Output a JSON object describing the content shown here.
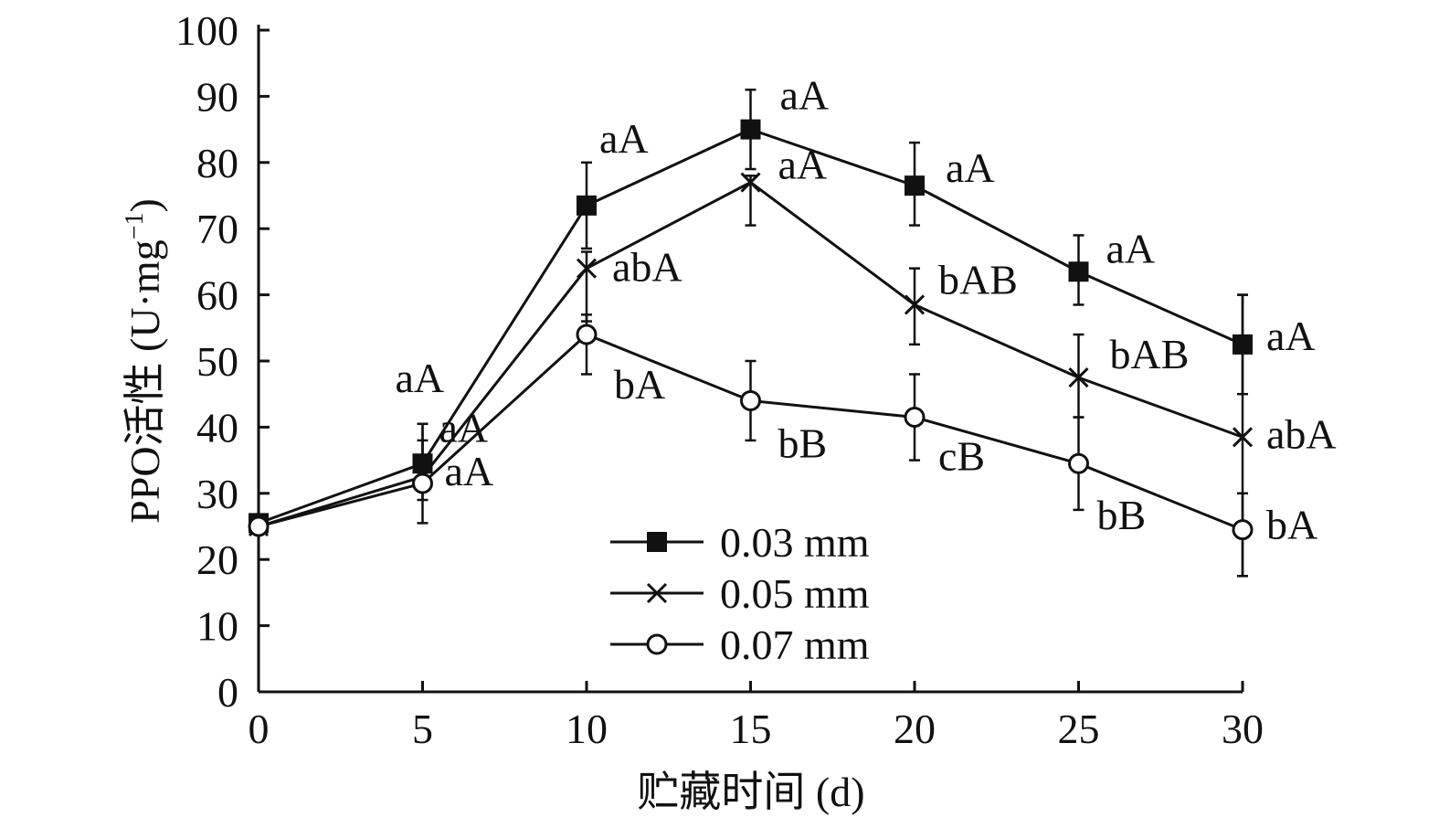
{
  "chart_data": {
    "type": "line",
    "xlabel": "贮藏时间 (d)",
    "ylabel": "PPO活性 (U·mg",
    "ylabel_sup": "−1",
    "ylabel_close": ")",
    "xlim": [
      0,
      30
    ],
    "ylim": [
      0,
      100
    ],
    "xticks": [
      0,
      5,
      10,
      15,
      20,
      25,
      30
    ],
    "yticks": [
      0,
      10,
      20,
      30,
      40,
      50,
      60,
      70,
      80,
      90,
      100
    ],
    "legend_position": "bottom-center",
    "grid": false,
    "series": [
      {
        "name": "0.03 mm",
        "marker": "filled-square",
        "color": "#111111",
        "x": [
          0,
          5,
          10,
          15,
          20,
          25,
          30
        ],
        "y": [
          25.5,
          34.5,
          73.5,
          85,
          76.5,
          63.5,
          52.5
        ],
        "err_low": [
          25.5,
          31,
          67,
          79,
          70.5,
          58.5,
          45
        ],
        "err_high": [
          25.5,
          40.5,
          80,
          91,
          83,
          69,
          60
        ],
        "labels": [
          "",
          "aA",
          "aA",
          "aA",
          "aA",
          "aA",
          "aA"
        ]
      },
      {
        "name": "0.05 mm",
        "marker": "cross",
        "color": "#111111",
        "x": [
          0,
          5,
          10,
          15,
          20,
          25,
          30
        ],
        "y": [
          25,
          32.5,
          64,
          77,
          58.5,
          47.5,
          38.5
        ],
        "err_low": [
          25,
          29,
          56,
          70.5,
          52.5,
          41.5,
          17.5
        ],
        "err_high": [
          25,
          38,
          66.5,
          78,
          64,
          54,
          60
        ],
        "labels": [
          "",
          "aA",
          "abA",
          "aA",
          "bAB",
          "bAB",
          "abA"
        ]
      },
      {
        "name": "0.07 mm",
        "marker": "open-circle",
        "color": "#111111",
        "x": [
          0,
          5,
          10,
          15,
          20,
          25,
          30
        ],
        "y": [
          25,
          31.5,
          54,
          44,
          41.5,
          34.5,
          24.5
        ],
        "err_low": [
          25,
          25.5,
          48,
          38,
          35,
          27.5,
          17.5
        ],
        "err_high": [
          25,
          40.5,
          57,
          50,
          48,
          41.5,
          30
        ],
        "labels": [
          "",
          "aA",
          "bA",
          "bB",
          "cB",
          "bB",
          "bA"
        ]
      }
    ]
  }
}
